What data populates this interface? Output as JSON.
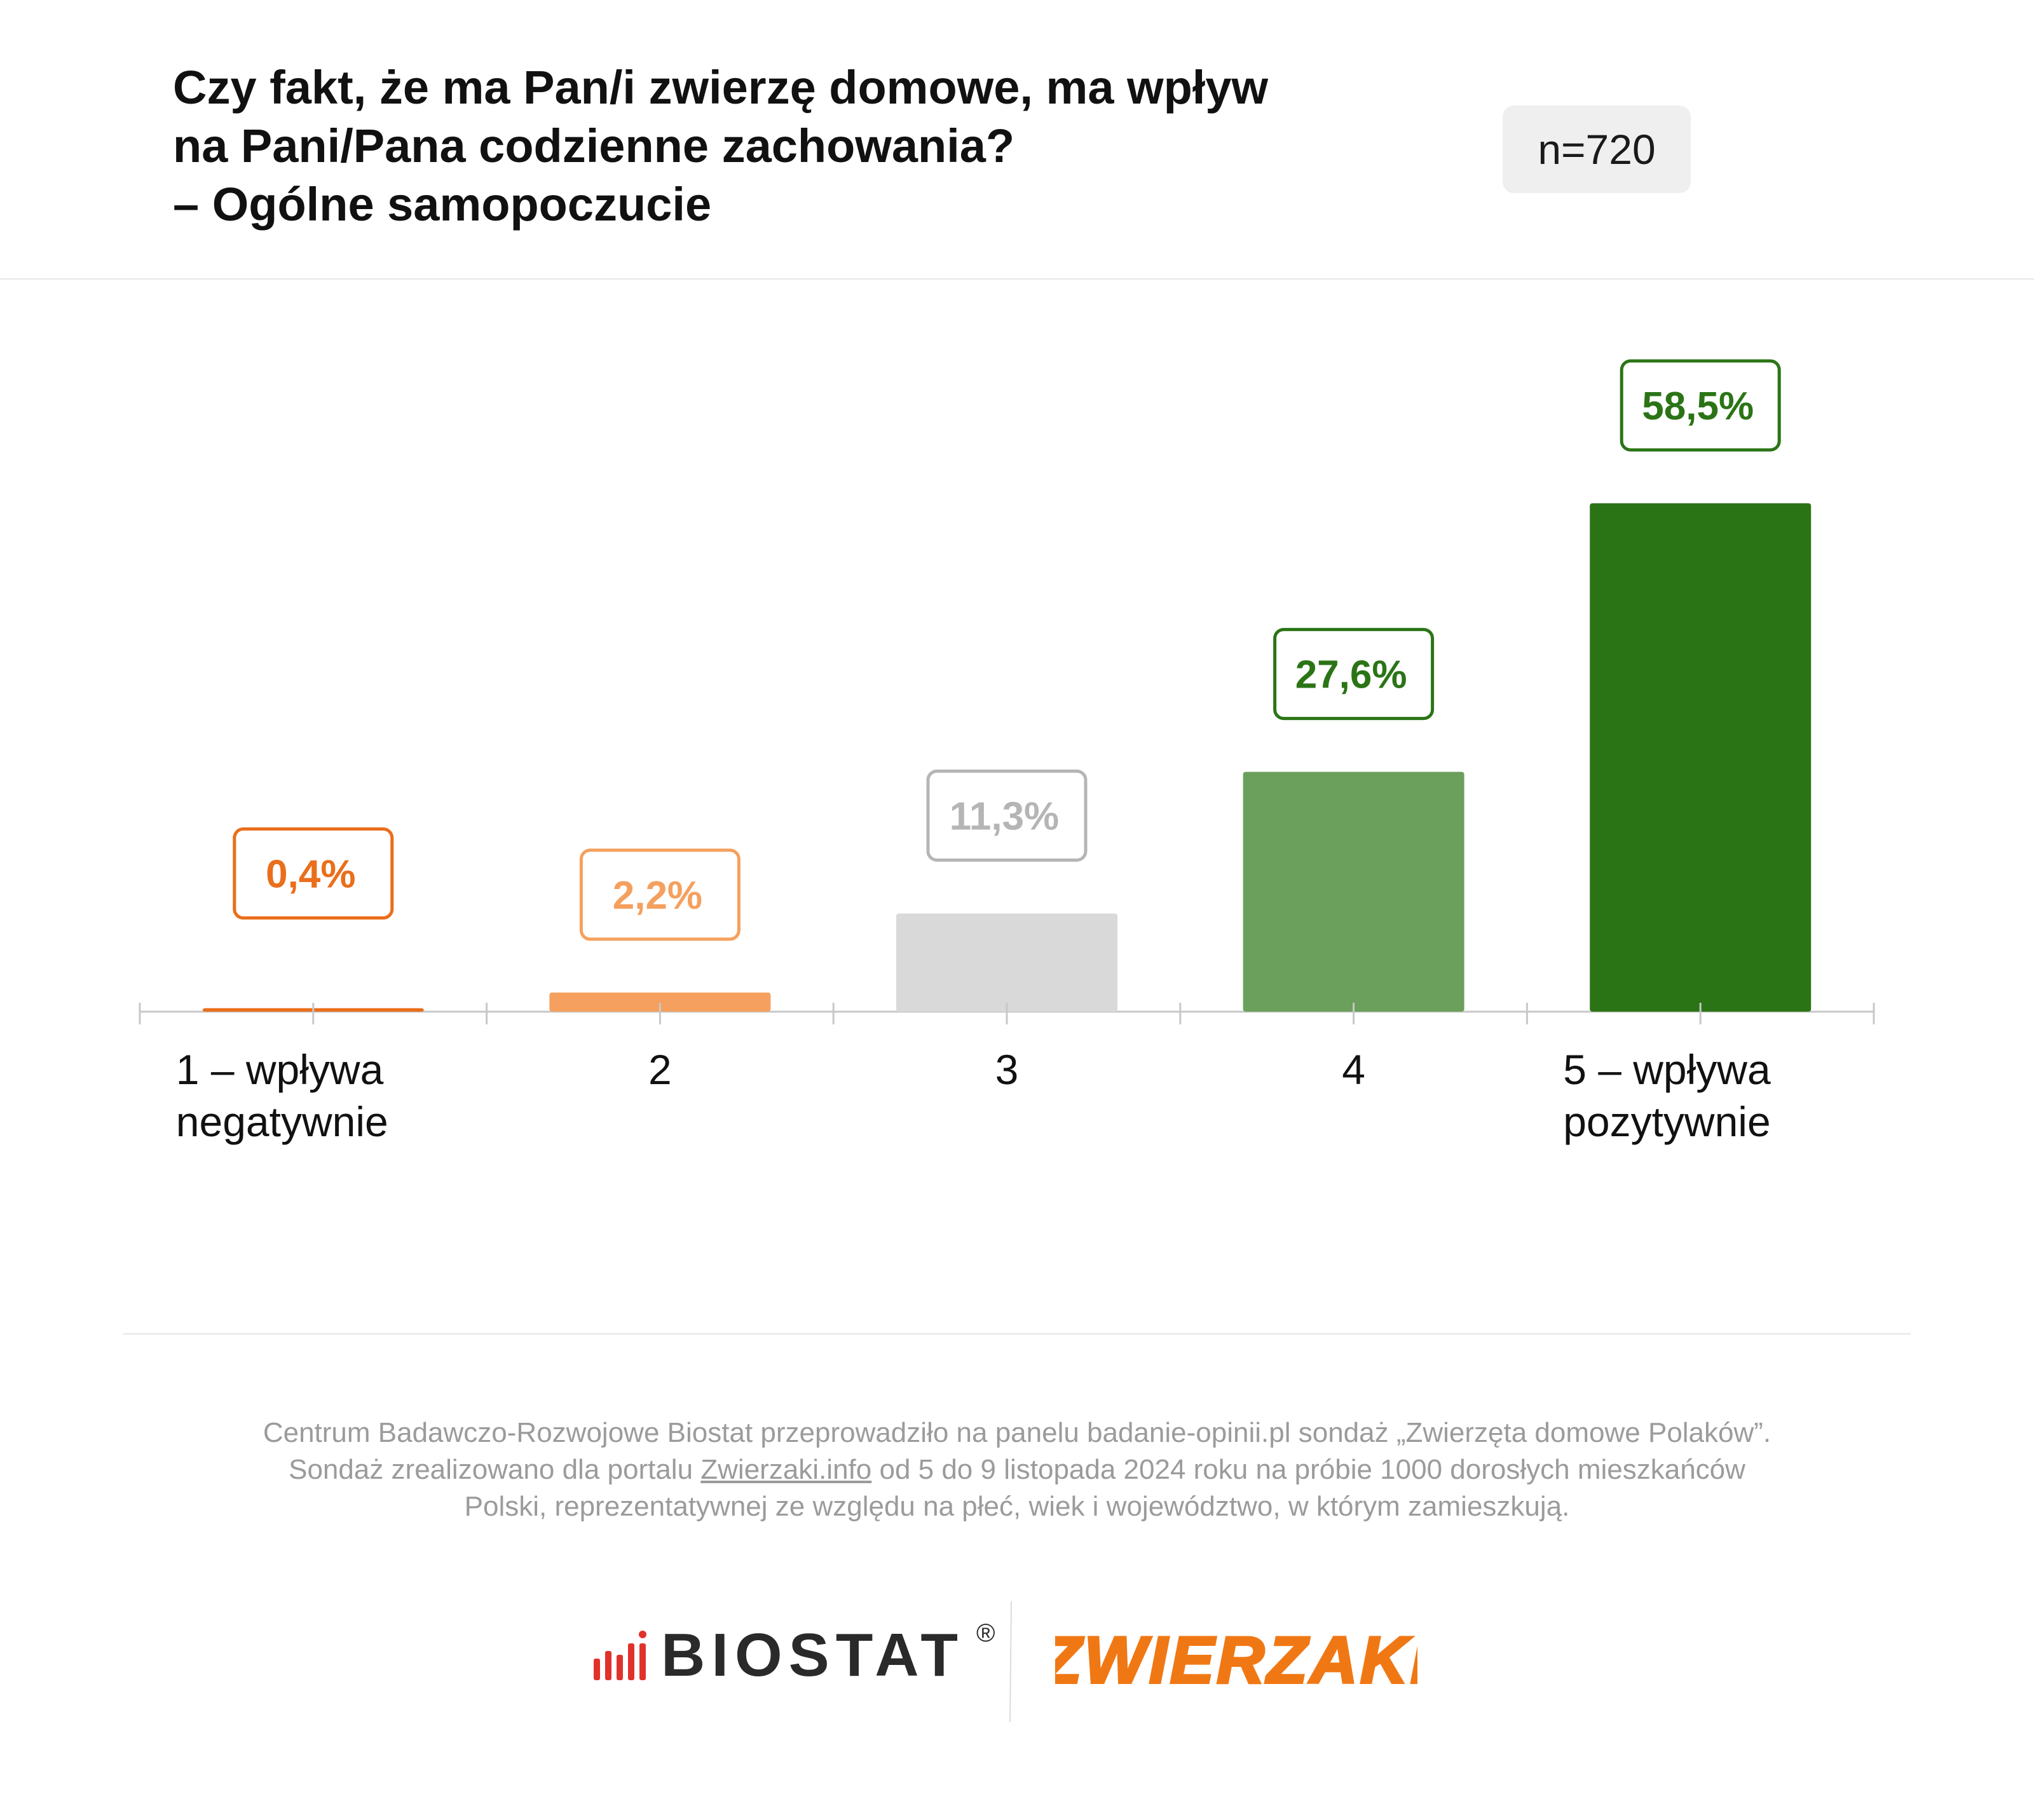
{
  "header": {
    "title_lines": [
      "Czy fakt, że ma Pan/i zwierzę domowe, ma wpływ",
      "na Pani/Pana codzienne zachowania?",
      "– Ogólne samopoczucie"
    ],
    "sample_size": "n=720"
  },
  "chart_data": {
    "type": "bar",
    "categories": [
      "1 – wpływa negatywnie",
      "2",
      "3",
      "4",
      "5 – wpływa pozytywnie"
    ],
    "category_label_lines": [
      [
        "1 – wpływa",
        "negatywnie"
      ],
      [
        "2"
      ],
      [
        "3"
      ],
      [
        "4"
      ],
      [
        "5 – wpływa",
        "pozytywnie"
      ]
    ],
    "values": [
      0.4,
      2.2,
      11.3,
      27.6,
      58.5
    ],
    "value_labels": [
      "0,4%",
      "2,2%",
      "11,3%",
      "27,6%",
      "58,5%"
    ],
    "bar_colors": [
      "#ea6e1b",
      "#f5a05e",
      "#d9d9d9",
      "#6aa05c",
      "#2b7416"
    ],
    "label_colors": [
      "#ea6e1b",
      "#f5a05e",
      "#b5b5b5",
      "#2b7416",
      "#2b7416"
    ],
    "unit": "%",
    "ylim": [
      0,
      60
    ],
    "grid": false,
    "legend": "none",
    "title": "",
    "xlabel": "",
    "ylabel": ""
  },
  "footer": {
    "note_lines": [
      [
        "Centrum Badawczo-Rozwojowe Biostat przeprowadziło na panelu badanie-opinii.pl sondaż „Zwierzęta domowe Polaków”."
      ],
      [
        "Sondaż zrealizowano dla portalu ",
        {
          "link": "Zwierzaki.info"
        },
        " od 5 do 9 listopada 2024 roku na próbie 1000 dorosłych mieszkańców"
      ],
      [
        "Polski, reprezentatywnej ze względu na płeć, wiek i województwo, w którym zamieszkują."
      ]
    ]
  },
  "logos": {
    "biostat": "BIOSTAT",
    "biostat_reg": "®",
    "zwierzaki": "ZWIERZAKI",
    "biostat_icon": "bar-signal-icon",
    "colors": {
      "biostat_mark": "#e0322b",
      "biostat_text": "#2a2a2a",
      "zwierzaki": "#f07814"
    }
  }
}
